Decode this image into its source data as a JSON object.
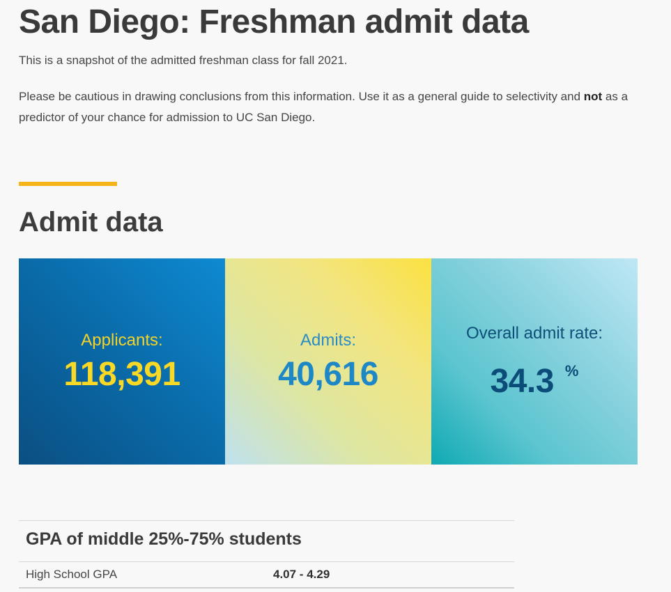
{
  "page": {
    "title": "San Diego: Freshman admit data",
    "intro": "This is a snapshot of the admitted freshman class for fall 2021.",
    "caution_before": "Please be cautious in drawing conclusions from this information. Use it as a general guide to selectivity and ",
    "caution_bold": "not",
    "caution_after": " as a predictor of your chance for admission to UC San Diego."
  },
  "admit_section": {
    "title": "Admit data",
    "accent_color": "#f4b41a",
    "stats": {
      "applicants": {
        "label": "Applicants:",
        "value": "118,391"
      },
      "admits": {
        "label": "Admits:",
        "value": "40,616"
      },
      "rate": {
        "label": "Overall admit rate:",
        "value": "34.3",
        "unit": "%"
      }
    }
  },
  "gpa_table": {
    "heading": "GPA of middle 25%-75% students",
    "rows": [
      {
        "label": "High School GPA",
        "value": "4.07 - 4.29"
      }
    ]
  },
  "colors": {
    "applicants_bg": "#0a6aa8",
    "applicants_text": "#f9d826",
    "admits_bg": "#f3e57f",
    "admits_text": "#1e87c6",
    "rate_bg": "#5cc5cf",
    "rate_text": "#0b4d78"
  }
}
